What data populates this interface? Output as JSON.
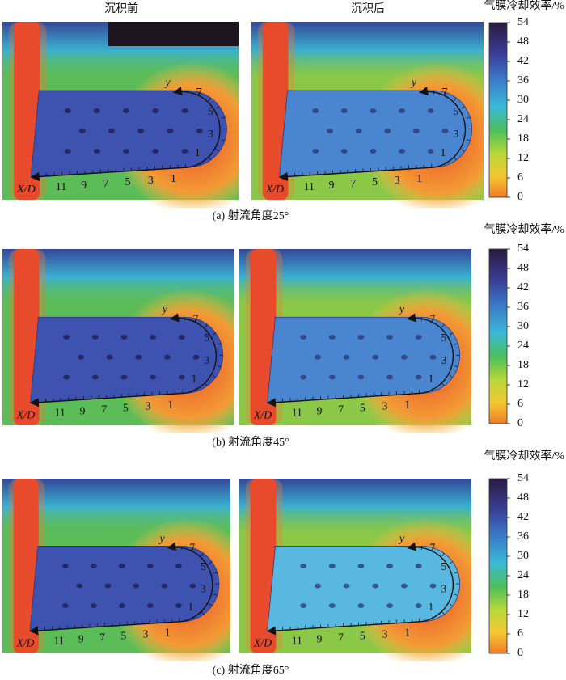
{
  "columns": [
    "沉积前",
    "沉积后"
  ],
  "colorbar": {
    "label": "气膜冷却效率/%",
    "ticks": [
      0,
      6,
      12,
      18,
      24,
      30,
      36,
      42,
      48,
      54
    ]
  },
  "panels": [
    {
      "caption": "(a) 射流角度25°"
    },
    {
      "caption": "(b) 射流角度45°"
    },
    {
      "caption": "(c) 射流角度65°"
    }
  ],
  "plot_labels": {
    "y": "y",
    "x": "X/D",
    "x_ticks": [
      "11",
      "9",
      "7",
      "5",
      "3",
      "1"
    ],
    "y_ticks": [
      "7",
      "5",
      "3",
      "1"
    ]
  }
}
